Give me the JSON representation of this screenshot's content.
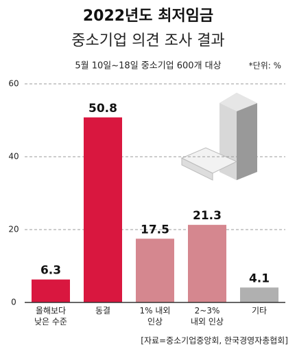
{
  "chart_data": {
    "type": "bar",
    "title": "2022년도 최저임금",
    "subtitle": "중소기업 의견 조사 결과",
    "note": "5월 10일~18일 중소기업 600개 대상",
    "unit": "*단위: %",
    "source": "[자료=중소기업중앙회, 한국경영자총협회]",
    "categories": [
      "올해보다\n낮은 수준",
      "동결",
      "1% 내외\n인상",
      "2~3%\n내외 인상",
      "기타"
    ],
    "values": [
      6.3,
      50.8,
      17.5,
      21.3,
      4.1
    ],
    "colors": [
      "#d9173f",
      "#d9173f",
      "#d5878f",
      "#d5878f",
      "#b0b0b0"
    ],
    "ylim": [
      0,
      60
    ],
    "yticks": [
      0,
      20,
      40,
      60
    ],
    "grid": true
  }
}
